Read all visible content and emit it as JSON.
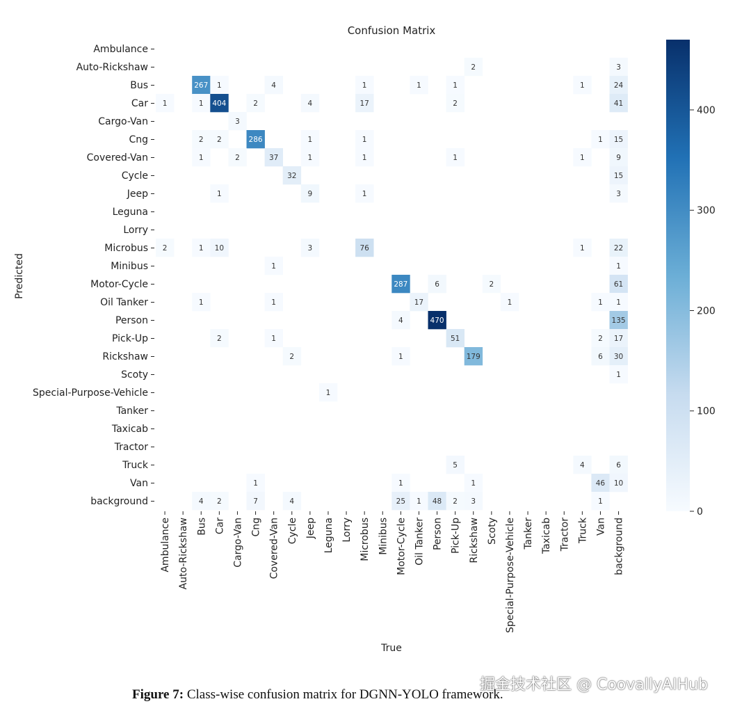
{
  "chart_data": {
    "type": "heatmap",
    "title": "Confusion Matrix",
    "xlabel": "True",
    "ylabel": "Predicted",
    "labels": [
      "Ambulance",
      "Auto-Rickshaw",
      "Bus",
      "Car",
      "Cargo-Van",
      "Cng",
      "Covered-Van",
      "Cycle",
      "Jeep",
      "Leguna",
      "Lorry",
      "Microbus",
      "Minibus",
      "Motor-Cycle",
      "Oil Tanker",
      "Person",
      "Pick-Up",
      "Rickshaw",
      "Scoty",
      "Special-Purpose-Vehicle",
      "Tanker",
      "Taxicab",
      "Tractor",
      "Truck",
      "Van",
      "background"
    ],
    "cells": [
      {
        "row": 1,
        "col": 17,
        "value": 2
      },
      {
        "row": 1,
        "col": 25,
        "value": 3
      },
      {
        "row": 2,
        "col": 2,
        "value": 267
      },
      {
        "row": 2,
        "col": 3,
        "value": 1
      },
      {
        "row": 2,
        "col": 6,
        "value": 4
      },
      {
        "row": 2,
        "col": 11,
        "value": 1
      },
      {
        "row": 2,
        "col": 14,
        "value": 1
      },
      {
        "row": 2,
        "col": 16,
        "value": 1
      },
      {
        "row": 2,
        "col": 23,
        "value": 1
      },
      {
        "row": 2,
        "col": 25,
        "value": 24
      },
      {
        "row": 3,
        "col": 0,
        "value": 1
      },
      {
        "row": 3,
        "col": 2,
        "value": 1
      },
      {
        "row": 3,
        "col": 3,
        "value": 404
      },
      {
        "row": 3,
        "col": 5,
        "value": 2
      },
      {
        "row": 3,
        "col": 8,
        "value": 4
      },
      {
        "row": 3,
        "col": 11,
        "value": 17
      },
      {
        "row": 3,
        "col": 16,
        "value": 2
      },
      {
        "row": 3,
        "col": 25,
        "value": 41
      },
      {
        "row": 4,
        "col": 4,
        "value": 3
      },
      {
        "row": 5,
        "col": 2,
        "value": 2
      },
      {
        "row": 5,
        "col": 3,
        "value": 2
      },
      {
        "row": 5,
        "col": 5,
        "value": 286
      },
      {
        "row": 5,
        "col": 8,
        "value": 1
      },
      {
        "row": 5,
        "col": 11,
        "value": 1
      },
      {
        "row": 5,
        "col": 24,
        "value": 1
      },
      {
        "row": 5,
        "col": 25,
        "value": 15
      },
      {
        "row": 6,
        "col": 2,
        "value": 1
      },
      {
        "row": 6,
        "col": 4,
        "value": 2
      },
      {
        "row": 6,
        "col": 6,
        "value": 37
      },
      {
        "row": 6,
        "col": 8,
        "value": 1
      },
      {
        "row": 6,
        "col": 11,
        "value": 1
      },
      {
        "row": 6,
        "col": 16,
        "value": 1
      },
      {
        "row": 6,
        "col": 23,
        "value": 1
      },
      {
        "row": 6,
        "col": 25,
        "value": 9
      },
      {
        "row": 7,
        "col": 7,
        "value": 32
      },
      {
        "row": 7,
        "col": 25,
        "value": 15
      },
      {
        "row": 8,
        "col": 3,
        "value": 1
      },
      {
        "row": 8,
        "col": 8,
        "value": 9
      },
      {
        "row": 8,
        "col": 11,
        "value": 1
      },
      {
        "row": 8,
        "col": 25,
        "value": 3
      },
      {
        "row": 11,
        "col": 0,
        "value": 2
      },
      {
        "row": 11,
        "col": 2,
        "value": 1
      },
      {
        "row": 11,
        "col": 3,
        "value": 10
      },
      {
        "row": 11,
        "col": 8,
        "value": 3
      },
      {
        "row": 11,
        "col": 11,
        "value": 76
      },
      {
        "row": 11,
        "col": 23,
        "value": 1
      },
      {
        "row": 11,
        "col": 25,
        "value": 22
      },
      {
        "row": 12,
        "col": 6,
        "value": 1
      },
      {
        "row": 12,
        "col": 25,
        "value": 1
      },
      {
        "row": 13,
        "col": 13,
        "value": 287
      },
      {
        "row": 13,
        "col": 15,
        "value": 6
      },
      {
        "row": 13,
        "col": 18,
        "value": 2
      },
      {
        "row": 13,
        "col": 25,
        "value": 61
      },
      {
        "row": 14,
        "col": 2,
        "value": 1
      },
      {
        "row": 14,
        "col": 6,
        "value": 1
      },
      {
        "row": 14,
        "col": 14,
        "value": 17
      },
      {
        "row": 14,
        "col": 19,
        "value": 1
      },
      {
        "row": 14,
        "col": 24,
        "value": 1
      },
      {
        "row": 14,
        "col": 25,
        "value": 1
      },
      {
        "row": 15,
        "col": 13,
        "value": 4
      },
      {
        "row": 15,
        "col": 15,
        "value": 470
      },
      {
        "row": 15,
        "col": 25,
        "value": 135
      },
      {
        "row": 16,
        "col": 3,
        "value": 2
      },
      {
        "row": 16,
        "col": 6,
        "value": 1
      },
      {
        "row": 16,
        "col": 16,
        "value": 51
      },
      {
        "row": 16,
        "col": 24,
        "value": 2
      },
      {
        "row": 16,
        "col": 25,
        "value": 17
      },
      {
        "row": 17,
        "col": 7,
        "value": 2
      },
      {
        "row": 17,
        "col": 13,
        "value": 1
      },
      {
        "row": 17,
        "col": 17,
        "value": 179
      },
      {
        "row": 17,
        "col": 24,
        "value": 6
      },
      {
        "row": 17,
        "col": 25,
        "value": 30
      },
      {
        "row": 18,
        "col": 25,
        "value": 1
      },
      {
        "row": 19,
        "col": 9,
        "value": 1
      },
      {
        "row": 23,
        "col": 16,
        "value": 5
      },
      {
        "row": 23,
        "col": 23,
        "value": 4
      },
      {
        "row": 23,
        "col": 25,
        "value": 6
      },
      {
        "row": 24,
        "col": 5,
        "value": 1
      },
      {
        "row": 24,
        "col": 13,
        "value": 1
      },
      {
        "row": 24,
        "col": 17,
        "value": 1
      },
      {
        "row": 24,
        "col": 24,
        "value": 46
      },
      {
        "row": 24,
        "col": 25,
        "value": 10
      },
      {
        "row": 25,
        "col": 2,
        "value": 4
      },
      {
        "row": 25,
        "col": 3,
        "value": 2
      },
      {
        "row": 25,
        "col": 5,
        "value": 7
      },
      {
        "row": 25,
        "col": 7,
        "value": 4
      },
      {
        "row": 25,
        "col": 13,
        "value": 25
      },
      {
        "row": 25,
        "col": 14,
        "value": 1
      },
      {
        "row": 25,
        "col": 15,
        "value": 48
      },
      {
        "row": 25,
        "col": 16,
        "value": 2
      },
      {
        "row": 25,
        "col": 17,
        "value": 3
      },
      {
        "row": 25,
        "col": 24,
        "value": 1
      }
    ],
    "colorbar": {
      "min": 0,
      "max": 470,
      "ticks": [
        0,
        100,
        200,
        300,
        400
      ]
    },
    "colormap": {
      "low": "#f7fbff",
      "mid": "#6baed6",
      "high": "#08306b"
    }
  },
  "caption": {
    "label": "Figure 7:",
    "text": " Class-wise confusion matrix for DGNN-YOLO framework."
  },
  "watermark": "掘金技术社区 @ CoovallyAIHub"
}
